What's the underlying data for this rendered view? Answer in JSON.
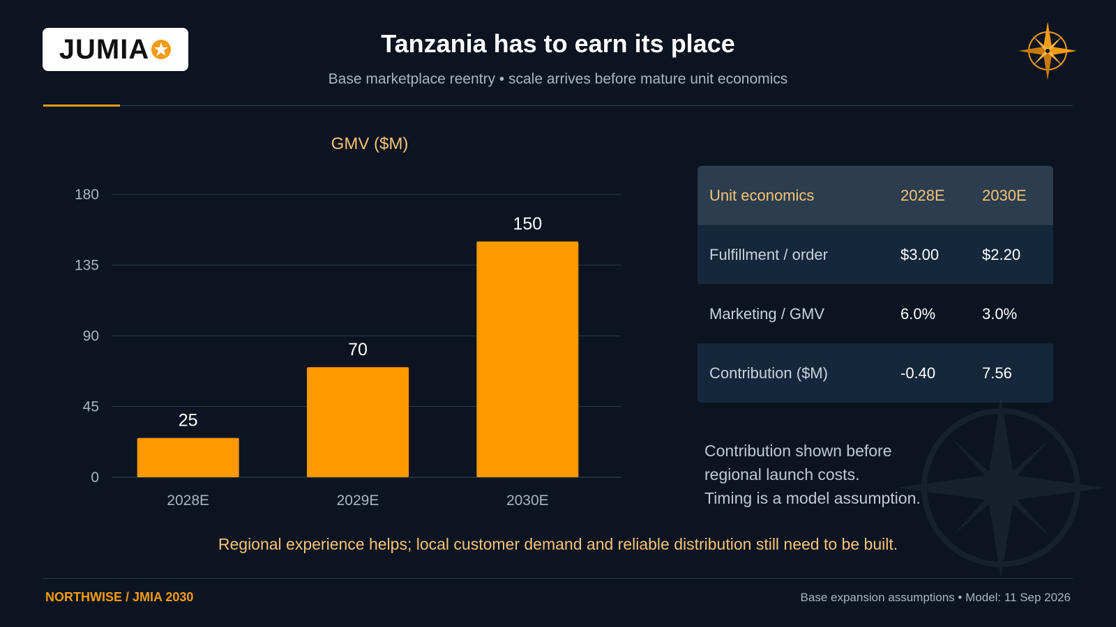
{
  "header": {
    "logo_text": "JUMIA",
    "title": "Tanzania has to earn its place",
    "subtitle": "Base marketplace reentry • scale arrives before mature unit economics",
    "logo_icon": "star-icon",
    "corner_icon": "compass-icon"
  },
  "colors": {
    "accent": "#f39c12",
    "background": "#0b1420",
    "bar": "#ff9900",
    "label_highlight": "#f6c478"
  },
  "chart_data": {
    "type": "bar",
    "title": "GMV ($M)",
    "categories": [
      "2028E",
      "2029E",
      "2030E"
    ],
    "values": [
      25,
      70,
      150
    ],
    "data_labels": [
      "25",
      "70",
      "150"
    ],
    "yticks": [
      "0",
      "45",
      "90",
      "135",
      "180"
    ],
    "ylim": [
      0,
      180
    ],
    "xlabel": "",
    "ylabel": "",
    "grid": true
  },
  "unit_economics": {
    "headers": [
      "Unit economics",
      "2028E",
      "2030E"
    ],
    "rows": [
      [
        "Fulfillment / order",
        "$3.00",
        "$2.20"
      ],
      [
        "Marketing / GMV",
        "6.0%",
        "3.0%"
      ],
      [
        "Contribution ($M)",
        "-0.40",
        "7.56"
      ]
    ]
  },
  "note": {
    "lines": [
      "Contribution shown before",
      "regional launch costs.",
      "Timing is a model assumption."
    ]
  },
  "takeaway": "Regional experience helps; local customer demand and reliable distribution still need to be built.",
  "footer": {
    "left": "NORTHWISE / JMIA 2030",
    "right": "Base expansion assumptions • Model: 11 Sep 2026"
  }
}
